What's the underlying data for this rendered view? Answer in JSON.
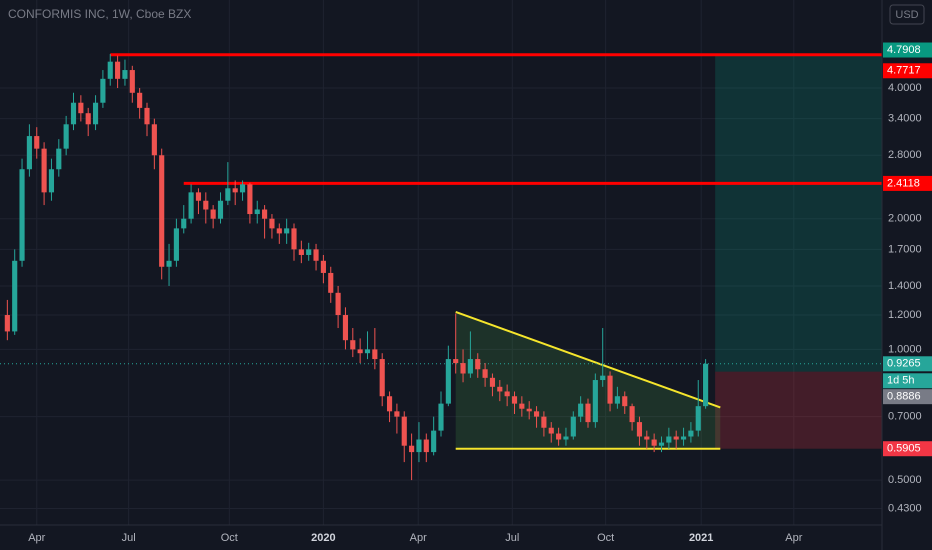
{
  "chart_data": {
    "type": "candlestick",
    "title": "CONFORMIS INC, 1W, Cboe BZX",
    "currency": "USD",
    "log_scale": true,
    "grid": true,
    "up_color": "#26a69a",
    "down_color": "#ef5350",
    "xlim": [
      -1,
      119
    ],
    "xticks": [
      {
        "value": 4,
        "label": "Apr"
      },
      {
        "value": 16.5,
        "label": "Jul"
      },
      {
        "value": 30.2,
        "label": "Oct"
      },
      {
        "value": 43,
        "label": "2020"
      },
      {
        "value": 55.9,
        "label": "Apr"
      },
      {
        "value": 68.7,
        "label": "Jul"
      },
      {
        "value": 81.4,
        "label": "Oct"
      },
      {
        "value": 94.4,
        "label": "2021"
      },
      {
        "value": 107,
        "label": "Apr"
      }
    ],
    "ylim": [
      0.394,
      6.38
    ],
    "yticks": [
      {
        "value": 4,
        "label": "4.0000"
      },
      {
        "value": 3.4,
        "label": "3.4000"
      },
      {
        "value": 2.8,
        "label": "2.8000"
      },
      {
        "value": 2,
        "label": "2.0000"
      },
      {
        "value": 1.7,
        "label": "1.7000"
      },
      {
        "value": 1.4,
        "label": "1.4000"
      },
      {
        "value": 1.2,
        "label": "1.2000"
      },
      {
        "value": 1,
        "label": "1.0000"
      },
      {
        "value": 0.7,
        "label": "0.7000"
      },
      {
        "value": 0.5,
        "label": "0.5000"
      },
      {
        "value": 0.43,
        "label": "0.4300"
      }
    ],
    "open": [
      1.2,
      1.1,
      1.6,
      2.6,
      3.1,
      2.9,
      2.3,
      2.6,
      2.9,
      3.3,
      3.7,
      3.5,
      3.3,
      3.7,
      4.2,
      4.6,
      4.2,
      4.4,
      3.9,
      3.6,
      3.3,
      2.8,
      1.55,
      1.6,
      1.9,
      2.0,
      2.3,
      2.2,
      2.1,
      2.0,
      2.2,
      2.35,
      2.3,
      2.4,
      2.05,
      2.1,
      2.0,
      1.9,
      1.85,
      1.9,
      1.7,
      1.65,
      1.7,
      1.6,
      1.5,
      1.35,
      1.2,
      1.05,
      1.0,
      0.98,
      1.0,
      0.95,
      0.78,
      0.72,
      0.7,
      0.6,
      0.58,
      0.62,
      0.58,
      0.65,
      0.75,
      0.95,
      0.93,
      0.88,
      0.95,
      0.9,
      0.86,
      0.82,
      0.8,
      0.78,
      0.75,
      0.73,
      0.72,
      0.7,
      0.66,
      0.64,
      0.62,
      0.63,
      0.7,
      0.75,
      0.68,
      0.85,
      0.87,
      0.75,
      0.78,
      0.74,
      0.68,
      0.63,
      0.62,
      0.6,
      0.61,
      0.63,
      0.62,
      0.63,
      0.65,
      0.74
    ],
    "high": [
      1.3,
      1.7,
      2.75,
      3.3,
      3.25,
      3.0,
      2.75,
      3.05,
      3.45,
      3.9,
      3.85,
      3.6,
      3.85,
      4.4,
      4.79,
      4.75,
      4.65,
      4.5,
      4.0,
      3.7,
      3.4,
      2.9,
      1.75,
      2.0,
      2.15,
      2.4,
      2.35,
      2.3,
      2.15,
      2.3,
      2.7,
      2.45,
      2.45,
      2.42,
      2.2,
      2.15,
      2.05,
      1.95,
      2.0,
      1.95,
      1.78,
      1.76,
      1.75,
      1.65,
      1.55,
      1.4,
      1.25,
      1.12,
      1.06,
      1.1,
      1.12,
      0.98,
      0.8,
      0.75,
      0.72,
      0.64,
      0.68,
      0.64,
      0.7,
      0.8,
      1.02,
      1.21,
      1.0,
      1.1,
      0.98,
      0.93,
      0.88,
      0.85,
      0.83,
      0.8,
      0.78,
      0.76,
      0.74,
      0.72,
      0.68,
      0.66,
      0.66,
      0.72,
      0.78,
      0.77,
      0.88,
      1.12,
      0.89,
      0.82,
      0.8,
      0.75,
      0.7,
      0.65,
      0.64,
      0.63,
      0.66,
      0.65,
      0.66,
      0.68,
      0.85,
      0.95
    ],
    "low": [
      1.05,
      1.08,
      1.55,
      2.5,
      2.75,
      2.15,
      2.2,
      2.5,
      2.8,
      3.2,
      3.35,
      3.1,
      3.2,
      3.6,
      4.05,
      4.0,
      4.05,
      3.7,
      3.4,
      3.1,
      2.6,
      1.45,
      1.4,
      1.55,
      1.85,
      1.95,
      2.05,
      1.95,
      1.9,
      1.95,
      2.15,
      2.15,
      2.2,
      1.95,
      1.95,
      1.8,
      1.8,
      1.75,
      1.75,
      1.6,
      1.58,
      1.6,
      1.52,
      1.42,
      1.28,
      1.12,
      1.0,
      0.96,
      0.93,
      0.95,
      0.9,
      0.74,
      0.68,
      0.64,
      0.55,
      0.5,
      0.55,
      0.55,
      0.57,
      0.63,
      0.74,
      0.88,
      0.84,
      0.86,
      0.86,
      0.82,
      0.78,
      0.76,
      0.74,
      0.71,
      0.7,
      0.69,
      0.66,
      0.63,
      0.61,
      0.6,
      0.6,
      0.62,
      0.68,
      0.66,
      0.66,
      0.82,
      0.72,
      0.73,
      0.71,
      0.65,
      0.6,
      0.59,
      0.58,
      0.58,
      0.59,
      0.59,
      0.6,
      0.61,
      0.63,
      0.73
    ],
    "close": [
      1.1,
      1.6,
      2.6,
      3.1,
      2.9,
      2.3,
      2.6,
      2.9,
      3.3,
      3.7,
      3.5,
      3.3,
      3.7,
      4.2,
      4.6,
      4.2,
      4.4,
      3.9,
      3.6,
      3.3,
      2.8,
      1.55,
      1.6,
      1.9,
      2.0,
      2.3,
      2.2,
      2.1,
      2.0,
      2.2,
      2.35,
      2.3,
      2.4,
      2.05,
      2.1,
      2.0,
      1.9,
      1.85,
      1.9,
      1.7,
      1.65,
      1.7,
      1.6,
      1.5,
      1.35,
      1.2,
      1.05,
      1.0,
      0.98,
      1.0,
      0.95,
      0.78,
      0.72,
      0.7,
      0.6,
      0.58,
      0.62,
      0.58,
      0.65,
      0.75,
      0.95,
      0.93,
      0.88,
      0.95,
      0.9,
      0.86,
      0.82,
      0.8,
      0.78,
      0.75,
      0.73,
      0.72,
      0.7,
      0.66,
      0.64,
      0.62,
      0.63,
      0.7,
      0.75,
      0.68,
      0.85,
      0.87,
      0.75,
      0.78,
      0.74,
      0.68,
      0.63,
      0.62,
      0.6,
      0.61,
      0.63,
      0.62,
      0.63,
      0.65,
      0.74,
      0.9265
    ],
    "countdown": "1d 5h",
    "levels": [
      {
        "value": 4.7717,
        "from": 14
      },
      {
        "value": 2.4118,
        "from": 24
      }
    ],
    "triangle": {
      "upper": [
        [
          61,
          1.22
        ],
        [
          97,
          0.735
        ]
      ],
      "lower": [
        [
          61,
          0.5905
        ],
        [
          97,
          0.5905
        ]
      ]
    },
    "position": {
      "from": 96.3,
      "target": 4.7908,
      "entry": 0.8886,
      "stop": 0.5905
    }
  }
}
